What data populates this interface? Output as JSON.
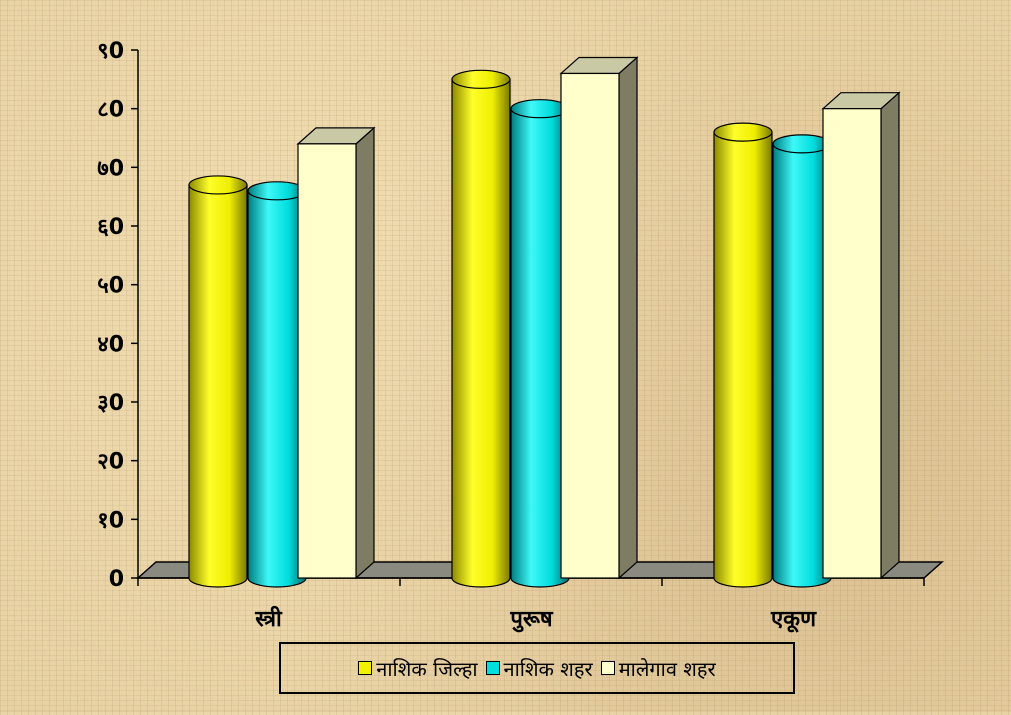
{
  "chart_data": {
    "type": "bar",
    "categories": [
      "स्त्री",
      "पुरूष",
      "एकूण"
    ],
    "series": [
      {
        "name": "नाशिक जिल्हा",
        "values": [
          67,
          85,
          76
        ],
        "color": "#f2f200"
      },
      {
        "name": "नाशिक शहर",
        "values": [
          66,
          80,
          74
        ],
        "color": "#00dede"
      },
      {
        "name": "मालेगाव शहर",
        "values": [
          74,
          86,
          80
        ],
        "color": "#ffffcc"
      }
    ],
    "yticks": [
      {
        "value": 0,
        "label": "0"
      },
      {
        "value": 10,
        "label": "१0"
      },
      {
        "value": 20,
        "label": "२0"
      },
      {
        "value": 30,
        "label": "३0"
      },
      {
        "value": 40,
        "label": "४0"
      },
      {
        "value": 50,
        "label": "५0"
      },
      {
        "value": 60,
        "label": "६0"
      },
      {
        "value": 70,
        "label": "७0"
      },
      {
        "value": 80,
        "label": "८0"
      },
      {
        "value": 90,
        "label": "९0"
      }
    ],
    "ylim": [
      0,
      90
    ],
    "legend_position": "bottom",
    "style": "3d-column-cylinder",
    "grid": false
  }
}
